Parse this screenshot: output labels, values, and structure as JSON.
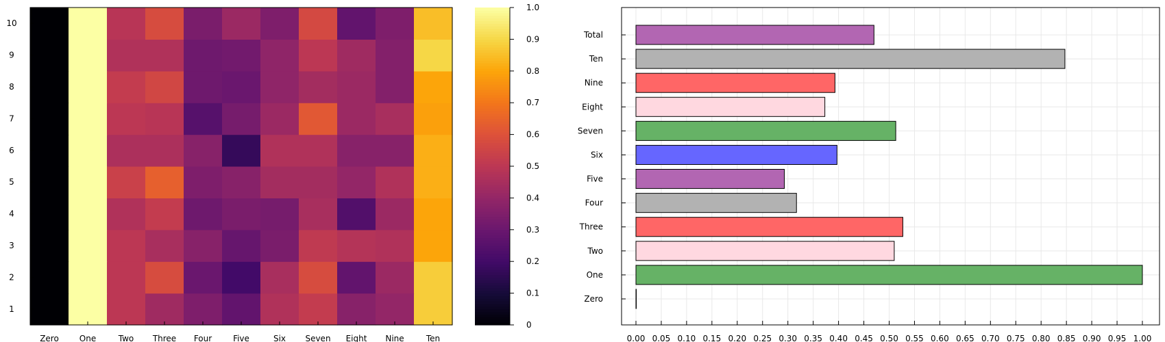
{
  "chart_data": [
    {
      "type": "heatmap",
      "title": "",
      "xlabel": "",
      "ylabel": "",
      "x_categories": [
        "Zero",
        "One",
        "Two",
        "Three",
        "Four",
        "Five",
        "Six",
        "Seven",
        "Eight",
        "Nine",
        "Ten"
      ],
      "y_categories": [
        "1",
        "2",
        "3",
        "4",
        "5",
        "6",
        "7",
        "8",
        "9",
        "10"
      ],
      "values": [
        [
          0,
          1,
          0.5,
          0.43,
          0.35,
          0.28,
          0.47,
          0.52,
          0.37,
          0.4,
          0.88
        ],
        [
          0,
          1,
          0.5,
          0.58,
          0.3,
          0.2,
          0.45,
          0.58,
          0.28,
          0.42,
          0.88
        ],
        [
          0,
          1,
          0.5,
          0.45,
          0.37,
          0.29,
          0.34,
          0.51,
          0.48,
          0.47,
          0.8
        ],
        [
          0,
          1,
          0.47,
          0.52,
          0.31,
          0.34,
          0.33,
          0.45,
          0.24,
          0.42,
          0.8
        ],
        [
          0,
          1,
          0.54,
          0.64,
          0.35,
          0.37,
          0.44,
          0.44,
          0.4,
          0.47,
          0.82
        ],
        [
          0,
          1,
          0.46,
          0.46,
          0.37,
          0.17,
          0.47,
          0.47,
          0.37,
          0.37,
          0.82
        ],
        [
          0,
          1,
          0.5,
          0.49,
          0.25,
          0.33,
          0.42,
          0.62,
          0.42,
          0.45,
          0.79
        ],
        [
          0,
          1,
          0.52,
          0.56,
          0.31,
          0.3,
          0.39,
          0.44,
          0.42,
          0.36,
          0.8
        ],
        [
          0,
          1,
          0.47,
          0.47,
          0.31,
          0.32,
          0.39,
          0.5,
          0.43,
          0.36,
          0.9
        ],
        [
          0,
          1,
          0.49,
          0.58,
          0.34,
          0.42,
          0.35,
          0.57,
          0.28,
          0.35,
          0.85
        ]
      ],
      "colorbar": {
        "colormap": "inferno",
        "range": [
          0,
          1.0
        ],
        "ticks": [
          "0",
          "0.1",
          "0.2",
          "0.3",
          "0.4",
          "0.5",
          "0.6",
          "0.7",
          "0.8",
          "0.9",
          "1.0"
        ]
      }
    },
    {
      "type": "bar",
      "orientation": "horizontal",
      "title": "",
      "xlabel": "",
      "ylabel": "",
      "categories": [
        "Zero",
        "One",
        "Two",
        "Three",
        "Four",
        "Five",
        "Six",
        "Seven",
        "Eight",
        "Nine",
        "Ten",
        "Total"
      ],
      "values": [
        0.0,
        1.0,
        0.51,
        0.527,
        0.317,
        0.293,
        0.397,
        0.513,
        0.373,
        0.393,
        0.847,
        0.47
      ],
      "colors": [
        "#66b266",
        "#66b266",
        "#ffd8e0",
        "#ff6666",
        "#b2b2b2",
        "#b266b2",
        "#6666ff",
        "#66b266",
        "#ffd8e0",
        "#ff6666",
        "#b2b2b2",
        "#b266b2"
      ],
      "xlim": [
        0,
        1.0
      ],
      "xticks": [
        "0.00",
        "0.05",
        "0.10",
        "0.15",
        "0.20",
        "0.25",
        "0.30",
        "0.35",
        "0.40",
        "0.45",
        "0.50",
        "0.55",
        "0.60",
        "0.65",
        "0.70",
        "0.75",
        "0.80",
        "0.85",
        "0.90",
        "0.95",
        "1.00"
      ],
      "grid": true,
      "legend": "none"
    }
  ]
}
